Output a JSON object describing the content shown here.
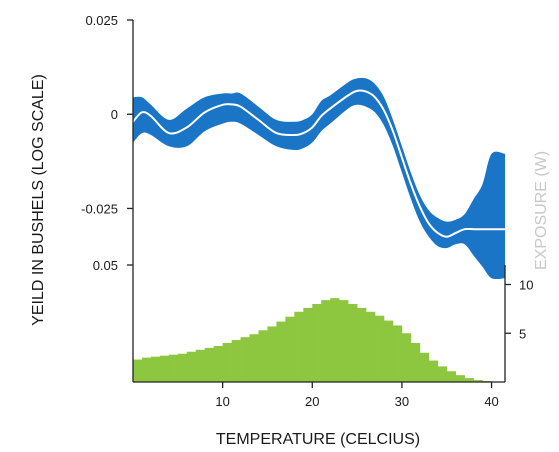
{
  "chart_data": {
    "type": "area",
    "xlabel": "TEMPERATURE (CELCIUS)",
    "ylabel": "YEILD IN BUSHELS (LOG SCALE)",
    "right_ylabel": "EXPOSURE (W)",
    "xlim": [
      0,
      41.5
    ],
    "x_ticks": [
      10,
      20,
      30,
      40
    ],
    "top_panel": {
      "ylim": [
        -0.04,
        0.025
      ],
      "y_ticks": [
        {
          "value": 0.025,
          "label": "0.025"
        },
        {
          "value": 0,
          "label": "0"
        },
        {
          "value": -0.025,
          "label": "-0.025"
        }
      ],
      "color": "#1a75c7",
      "line_color": "#ffffff",
      "x": [
        0,
        1,
        2,
        4,
        6,
        8,
        10,
        11,
        12,
        14,
        16,
        18,
        19,
        20,
        21,
        22,
        24,
        25,
        26,
        27,
        28,
        29,
        30,
        31,
        32,
        33,
        34,
        35,
        36,
        37,
        38,
        39,
        40,
        41.5
      ],
      "mean": [
        -0.002,
        0.0005,
        -0.0005,
        -0.005,
        -0.0035,
        0.0005,
        0.0025,
        0.0026,
        0.002,
        -0.0015,
        -0.005,
        -0.0055,
        -0.005,
        -0.0035,
        -0.0005,
        0.0015,
        0.005,
        0.0062,
        0.006,
        0.0045,
        0.001,
        -0.0045,
        -0.0115,
        -0.0185,
        -0.0245,
        -0.029,
        -0.0315,
        -0.0325,
        -0.0315,
        -0.0305,
        -0.0305,
        -0.0305,
        -0.0305,
        -0.0305
      ],
      "lower": [
        -0.0075,
        -0.005,
        -0.0055,
        -0.0085,
        -0.0085,
        -0.0045,
        -0.0025,
        -0.002,
        -0.0025,
        -0.0055,
        -0.0085,
        -0.0095,
        -0.009,
        -0.0075,
        -0.0045,
        -0.0025,
        0.0015,
        0.0025,
        0.002,
        0.0005,
        -0.003,
        -0.0085,
        -0.0155,
        -0.0225,
        -0.0285,
        -0.0325,
        -0.035,
        -0.0355,
        -0.0345,
        -0.0345,
        -0.0375,
        -0.0405,
        -0.0435,
        -0.0435
      ],
      "upper": [
        0.0045,
        0.0045,
        0.0025,
        -0.0015,
        0.0015,
        0.0045,
        0.0055,
        0.0055,
        0.0055,
        0.002,
        -0.0015,
        -0.002,
        -0.0015,
        0.0,
        0.0035,
        0.005,
        0.0085,
        0.0095,
        0.0095,
        0.008,
        0.0045,
        -0.0015,
        -0.0085,
        -0.0155,
        -0.0215,
        -0.0255,
        -0.0275,
        -0.0285,
        -0.028,
        -0.0265,
        -0.0225,
        -0.0185,
        -0.0105,
        -0.0105
      ]
    },
    "bottom_panel": {
      "left_y_ticks": [
        {
          "value": 0.05,
          "label": "0.05"
        }
      ],
      "right_ylim": [
        0,
        12
      ],
      "right_y_ticks": [
        {
          "value": 10,
          "label": "10"
        },
        {
          "value": 5,
          "label": "5"
        }
      ],
      "color": "#8dc63f",
      "bin_width": 1,
      "bins_start": [
        0,
        1,
        2,
        3,
        4,
        5,
        6,
        7,
        8,
        9,
        10,
        11,
        12,
        13,
        14,
        15,
        16,
        17,
        18,
        19,
        20,
        21,
        22,
        23,
        24,
        25,
        26,
        27,
        28,
        29,
        30,
        31,
        32,
        33,
        34,
        35,
        36,
        37,
        38,
        39,
        40
      ],
      "counts": [
        2.3,
        2.5,
        2.6,
        2.7,
        2.8,
        2.9,
        3.1,
        3.3,
        3.5,
        3.7,
        4.0,
        4.3,
        4.6,
        4.9,
        5.3,
        5.7,
        6.2,
        6.7,
        7.2,
        7.6,
        8.0,
        8.4,
        8.6,
        8.4,
        8.0,
        7.6,
        7.2,
        6.8,
        6.3,
        5.8,
        5.0,
        4.0,
        3.0,
        2.2,
        1.6,
        1.1,
        0.7,
        0.4,
        0.2,
        0.1,
        0.05
      ]
    }
  }
}
